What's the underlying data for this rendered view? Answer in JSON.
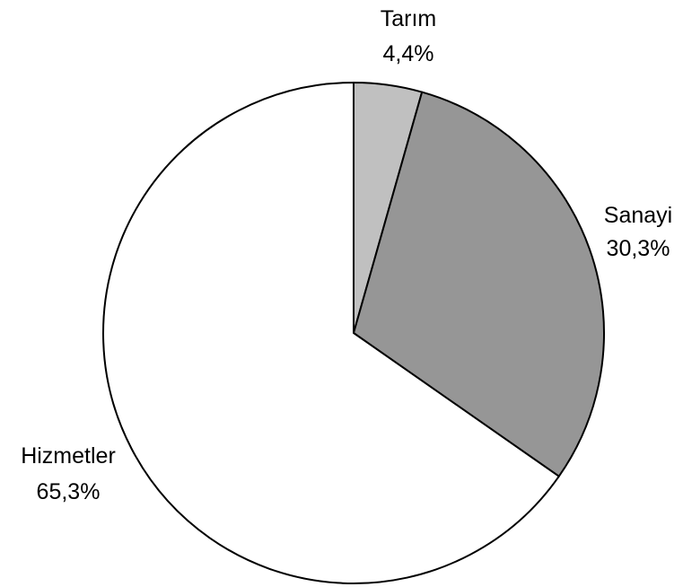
{
  "chart_data": {
    "type": "pie",
    "title": "",
    "start_angle_deg": 0,
    "direction": "clockwise",
    "slices": [
      {
        "label": "Tarım",
        "value": 4.4,
        "value_label": "4,4%",
        "color": "#c0c0c0"
      },
      {
        "label": "Sanayi",
        "value": 30.3,
        "value_label": "30,3%",
        "color": "#969696"
      },
      {
        "label": "Hizmetler",
        "value": 65.3,
        "value_label": "65,3%",
        "color": "#ffffff"
      }
    ]
  }
}
